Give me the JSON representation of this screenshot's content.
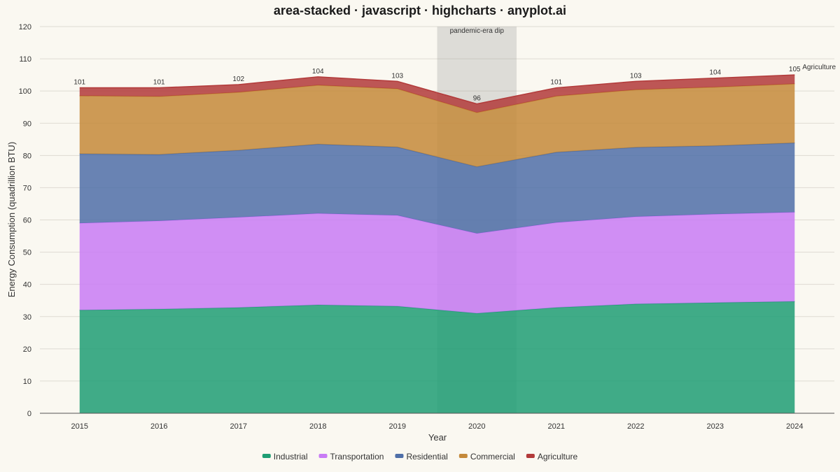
{
  "chart_data": {
    "type": "area",
    "stacked": true,
    "title": "area-stacked · javascript · highcharts · anyplot.ai",
    "xlabel": "Year",
    "ylabel": "Energy Consumption (quadrillion BTU)",
    "ylim": [
      0,
      120
    ],
    "yticks": [
      0,
      10,
      20,
      30,
      40,
      50,
      60,
      70,
      80,
      90,
      100,
      110,
      120
    ],
    "grid": true,
    "legend_position": "bottom",
    "x": [
      2015,
      2016,
      2017,
      2018,
      2019,
      2020,
      2021,
      2022,
      2023,
      2024
    ],
    "series": [
      {
        "name": "Industrial",
        "color": "#1f9e74",
        "values": [
          32.0,
          32.3,
          32.8,
          33.6,
          33.2,
          31.0,
          32.8,
          33.9,
          34.3,
          34.7
        ]
      },
      {
        "name": "Transportation",
        "color": "#c87bf5",
        "values": [
          27.0,
          27.4,
          28.0,
          28.4,
          28.2,
          24.8,
          26.4,
          27.1,
          27.5,
          27.7
        ]
      },
      {
        "name": "Residential",
        "color": "#4f6fa8",
        "values": [
          21.5,
          20.6,
          20.8,
          21.5,
          21.2,
          20.7,
          21.8,
          21.5,
          21.2,
          21.5
        ]
      },
      {
        "name": "Commercial",
        "color": "#c4893a",
        "values": [
          18.0,
          18.0,
          18.0,
          18.3,
          18.1,
          16.8,
          17.4,
          17.9,
          18.2,
          18.3
        ]
      },
      {
        "name": "Agriculture",
        "color": "#b23a3a",
        "values": [
          2.5,
          2.7,
          2.4,
          2.6,
          2.3,
          2.7,
          2.6,
          2.6,
          2.8,
          2.8
        ]
      }
    ],
    "total_labels": [
      "101",
      "101",
      "102",
      "104",
      "103",
      "96",
      "101",
      "103",
      "104",
      "105"
    ],
    "annotation_band": {
      "label": "pandemic-era dip",
      "from": 2019.5,
      "to": 2020.5
    },
    "end_label": "Agriculture"
  }
}
